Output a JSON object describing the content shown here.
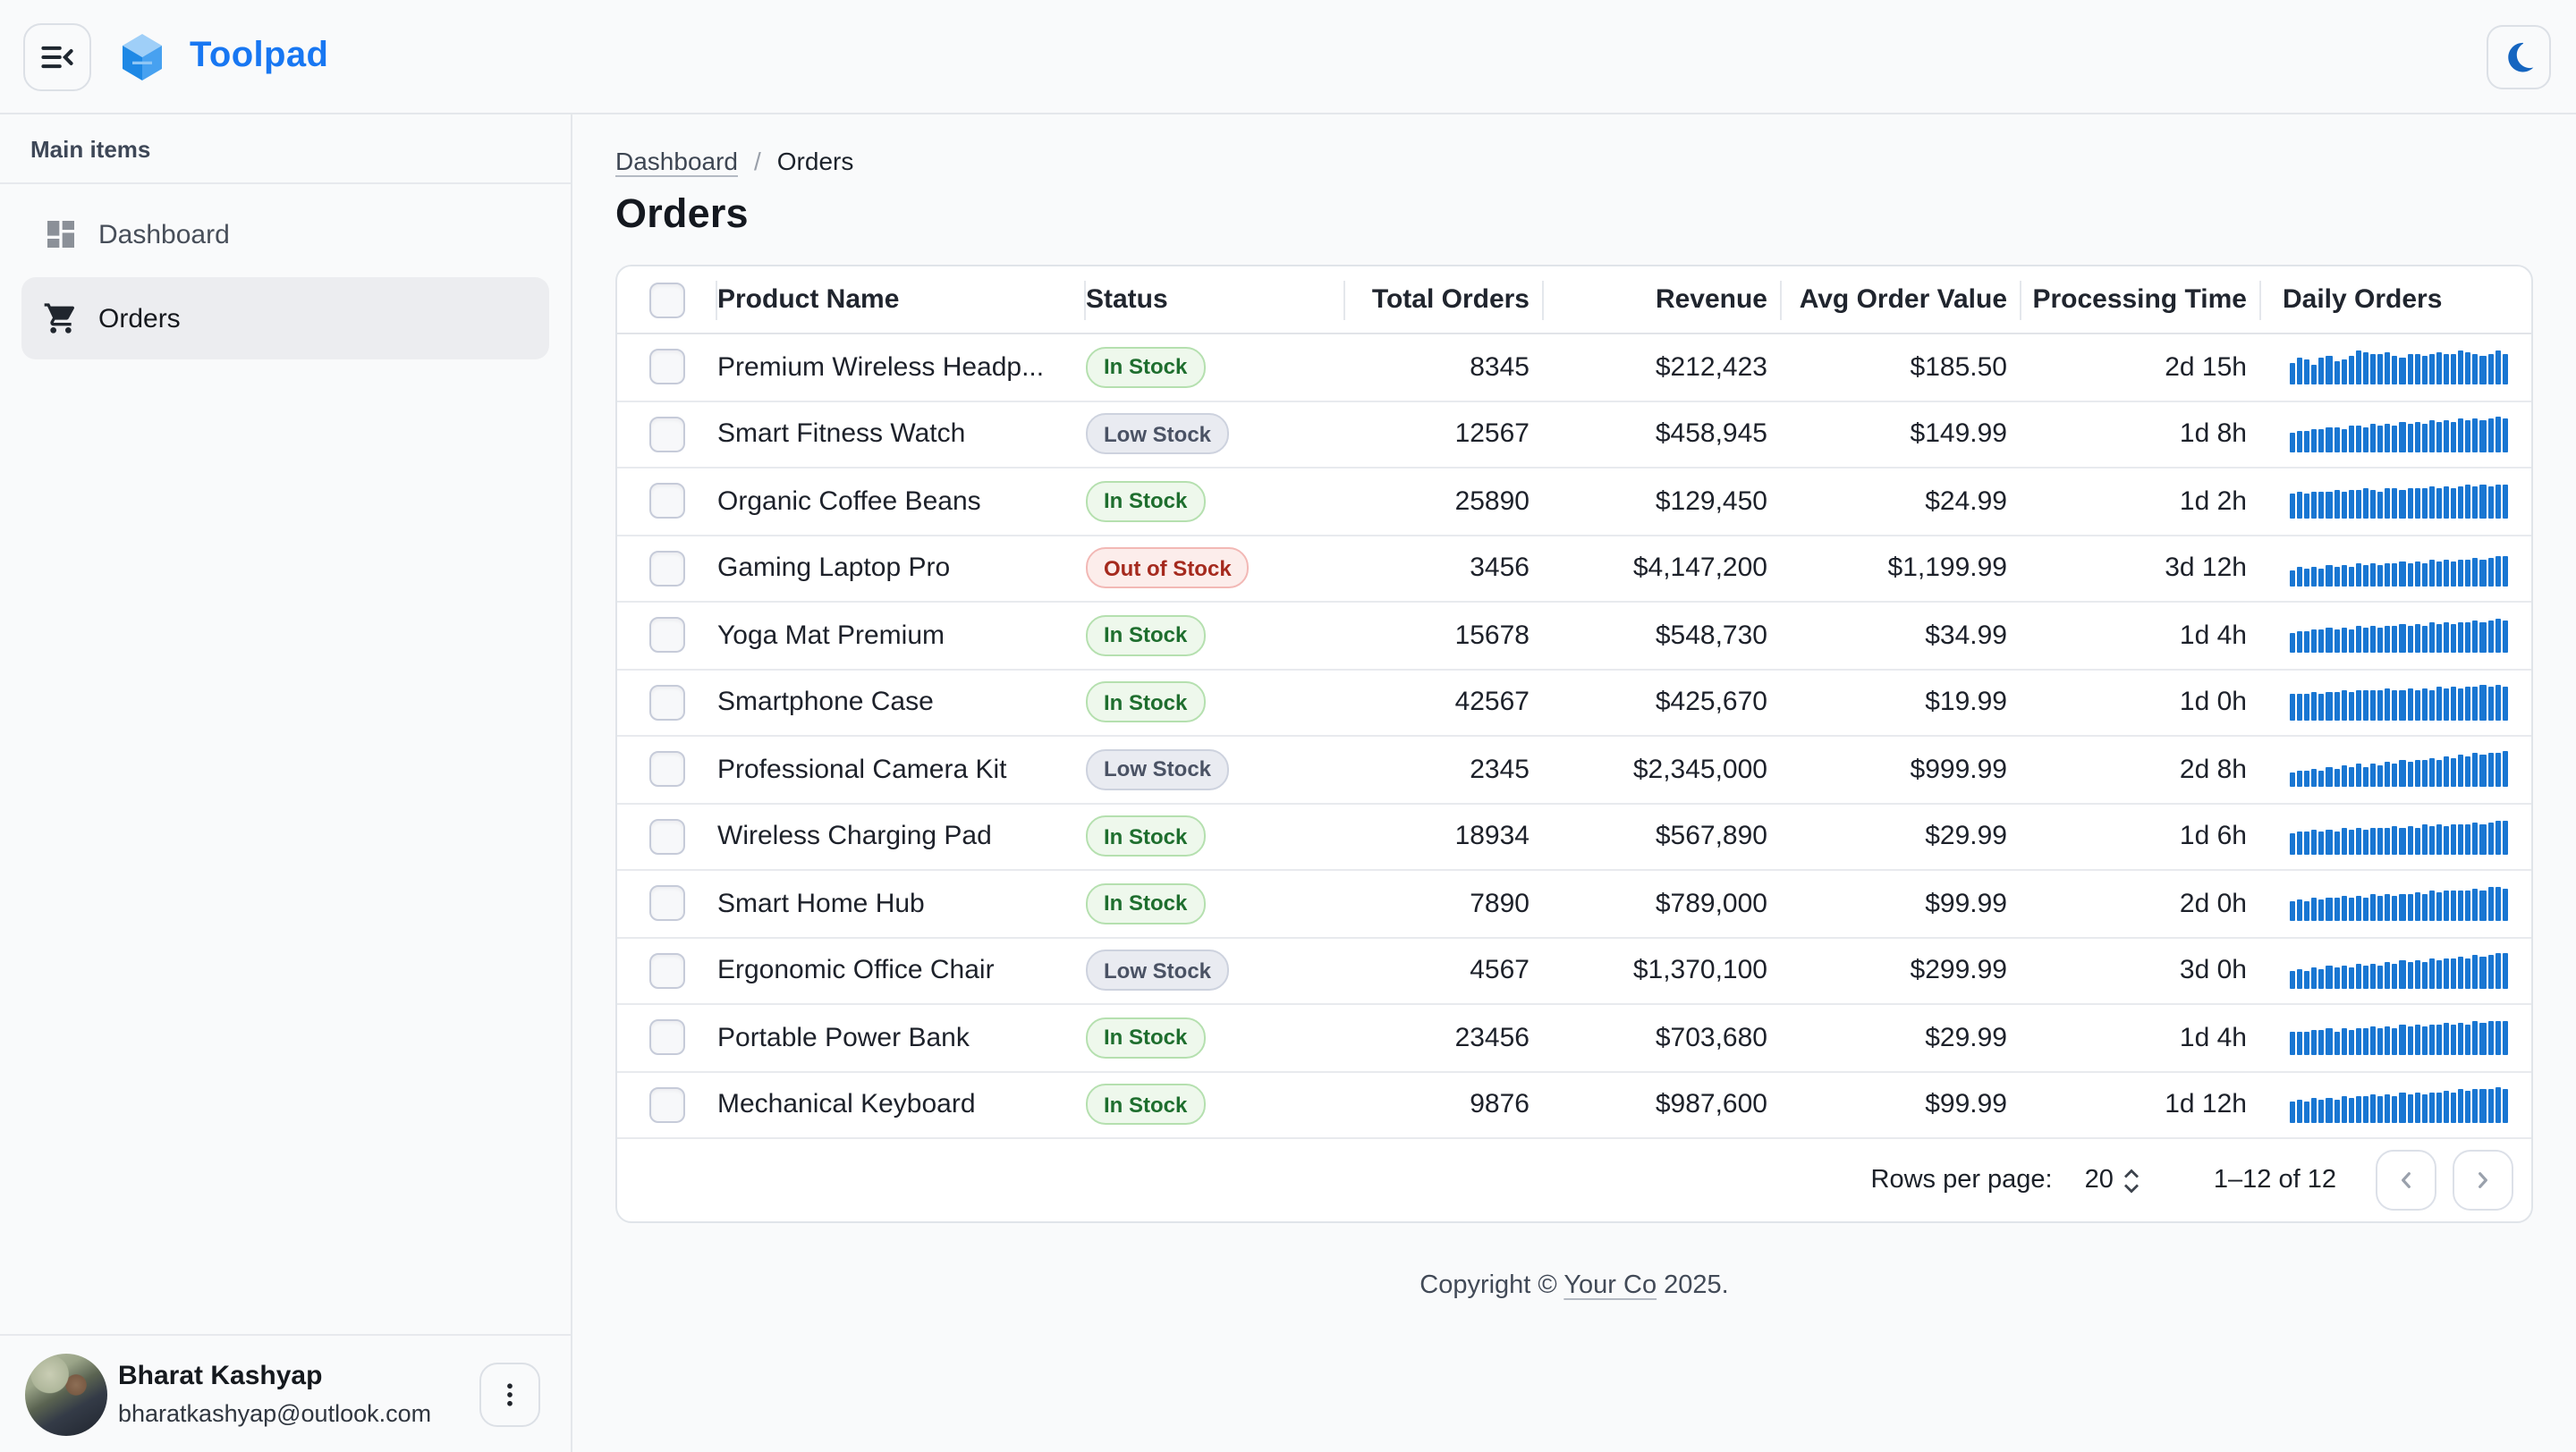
{
  "app": {
    "title": "Toolpad"
  },
  "theme": {
    "brand_blue": "#1877F2",
    "moon_blue": "#1565C0",
    "spark_blue": "#1976D2"
  },
  "sidebar": {
    "section_label": "Main items",
    "items": [
      {
        "label": "Dashboard",
        "icon": "dashboard-icon",
        "selected": false
      },
      {
        "label": "Orders",
        "icon": "cart-icon",
        "selected": true
      }
    ],
    "user": {
      "name": "Bharat Kashyap",
      "email": "bharatkashyap@outlook.com"
    }
  },
  "breadcrumb": {
    "parent": "Dashboard",
    "separator": "/",
    "current": "Orders"
  },
  "page": {
    "title": "Orders"
  },
  "table": {
    "columns": [
      "Product Name",
      "Status",
      "Total Orders",
      "Revenue",
      "Avg Order Value",
      "Processing Time",
      "Daily Orders"
    ],
    "rows": [
      {
        "product": "Premium Wireless Headp...",
        "status": {
          "label": "In Stock",
          "type": "in_stock"
        },
        "total_orders": "8345",
        "revenue": "$212,423",
        "avg_order_value": "$185.50",
        "processing_time": "2d 15h",
        "daily_orders": [
          62,
          75,
          70,
          58,
          78,
          82,
          65,
          72,
          80,
          95,
          92,
          88,
          85,
          90,
          82,
          78,
          84,
          88,
          80,
          86,
          92,
          85,
          88,
          94,
          90,
          84,
          82,
          88,
          95,
          85
        ]
      },
      {
        "product": "Smart Fitness Watch",
        "status": {
          "label": "Low Stock",
          "type": "low_stock"
        },
        "total_orders": "12567",
        "revenue": "$458,945",
        "avg_order_value": "$149.99",
        "processing_time": "1d 8h",
        "daily_orders": [
          55,
          60,
          58,
          65,
          62,
          68,
          70,
          66,
          72,
          75,
          70,
          78,
          74,
          80,
          76,
          82,
          78,
          85,
          80,
          88,
          84,
          90,
          86,
          92,
          88,
          95,
          90,
          96,
          100,
          94
        ]
      },
      {
        "product": "Organic Coffee Beans",
        "status": {
          "label": "In Stock",
          "type": "in_stock"
        },
        "total_orders": "25890",
        "revenue": "$129,450",
        "avg_order_value": "$24.99",
        "processing_time": "1d 2h",
        "daily_orders": [
          70,
          74,
          72,
          76,
          78,
          74,
          80,
          78,
          82,
          80,
          84,
          82,
          78,
          84,
          86,
          82,
          88,
          84,
          86,
          90,
          86,
          92,
          88,
          90,
          94,
          90,
          96,
          92,
          98,
          95
        ]
      },
      {
        "product": "Gaming Laptop Pro",
        "status": {
          "label": "Out of Stock",
          "type": "out_of_stock"
        },
        "total_orders": "3456",
        "revenue": "$4,147,200",
        "avg_order_value": "$1,199.99",
        "processing_time": "3d 12h",
        "daily_orders": [
          45,
          52,
          48,
          55,
          50,
          58,
          54,
          60,
          56,
          62,
          58,
          64,
          60,
          66,
          62,
          68,
          64,
          70,
          66,
          72,
          68,
          74,
          70,
          76,
          72,
          78,
          74,
          80,
          82,
          85
        ]
      },
      {
        "product": "Yoga Mat Premium",
        "status": {
          "label": "In Stock",
          "type": "in_stock"
        },
        "total_orders": "15678",
        "revenue": "$548,730",
        "avg_order_value": "$34.99",
        "processing_time": "1d 4h",
        "daily_orders": [
          58,
          62,
          60,
          66,
          64,
          70,
          68,
          72,
          66,
          74,
          70,
          76,
          72,
          78,
          74,
          80,
          76,
          82,
          78,
          84,
          80,
          86,
          82,
          88,
          84,
          90,
          86,
          92,
          94,
          90
        ]
      },
      {
        "product": "Smartphone Case",
        "status": {
          "label": "In Stock",
          "type": "in_stock"
        },
        "total_orders": "42567",
        "revenue": "$425,670",
        "avg_order_value": "$19.99",
        "processing_time": "1d 0h",
        "daily_orders": [
          72,
          76,
          74,
          78,
          76,
          80,
          78,
          82,
          80,
          84,
          82,
          86,
          84,
          88,
          82,
          86,
          88,
          84,
          90,
          86,
          92,
          88,
          94,
          90,
          96,
          92,
          98,
          94,
          100,
          96
        ]
      },
      {
        "product": "Professional Camera Kit",
        "status": {
          "label": "Low Stock",
          "type": "low_stock"
        },
        "total_orders": "2345",
        "revenue": "$2,345,000",
        "avg_order_value": "$999.99",
        "processing_time": "2d 8h",
        "daily_orders": [
          40,
          46,
          44,
          52,
          48,
          56,
          52,
          60,
          56,
          64,
          58,
          66,
          62,
          70,
          66,
          74,
          70,
          78,
          74,
          82,
          78,
          86,
          82,
          90,
          86,
          94,
          90,
          98,
          95,
          100
        ]
      },
      {
        "product": "Wireless Charging Pad",
        "status": {
          "label": "In Stock",
          "type": "in_stock"
        },
        "total_orders": "18934",
        "revenue": "$567,890",
        "avg_order_value": "$29.99",
        "processing_time": "1d 6h",
        "daily_orders": [
          60,
          64,
          62,
          68,
          66,
          70,
          64,
          72,
          68,
          74,
          70,
          76,
          72,
          74,
          78,
          72,
          80,
          74,
          82,
          78,
          84,
          80,
          82,
          86,
          82,
          88,
          84,
          90,
          92,
          95
        ]
      },
      {
        "product": "Smart Home Hub",
        "status": {
          "label": "In Stock",
          "type": "in_stock"
        },
        "total_orders": "7890",
        "revenue": "$789,000",
        "avg_order_value": "$99.99",
        "processing_time": "2d 0h",
        "daily_orders": [
          56,
          60,
          58,
          64,
          62,
          66,
          64,
          70,
          66,
          72,
          68,
          74,
          70,
          76,
          72,
          78,
          76,
          80,
          78,
          84,
          80,
          86,
          84,
          88,
          86,
          92,
          88,
          94,
          96,
          92
        ]
      },
      {
        "product": "Ergonomic Office Chair",
        "status": {
          "label": "Low Stock",
          "type": "low_stock"
        },
        "total_orders": "4567",
        "revenue": "$1,370,100",
        "avg_order_value": "$299.99",
        "processing_time": "3d 0h",
        "daily_orders": [
          48,
          54,
          50,
          58,
          54,
          62,
          58,
          64,
          60,
          68,
          62,
          70,
          66,
          74,
          68,
          78,
          72,
          80,
          76,
          84,
          78,
          86,
          82,
          90,
          84,
          94,
          88,
          96,
          100,
          98
        ]
      },
      {
        "product": "Portable Power Bank",
        "status": {
          "label": "In Stock",
          "type": "in_stock"
        },
        "total_orders": "23456",
        "revenue": "$703,680",
        "avg_order_value": "$29.99",
        "processing_time": "1d 4h",
        "daily_orders": [
          64,
          68,
          66,
          72,
          70,
          74,
          68,
          76,
          72,
          78,
          74,
          80,
          76,
          82,
          78,
          84,
          80,
          86,
          82,
          88,
          84,
          90,
          86,
          92,
          88,
          94,
          90,
          96,
          98,
          94
        ]
      },
      {
        "product": "Mechanical Keyboard",
        "status": {
          "label": "In Stock",
          "type": "in_stock"
        },
        "total_orders": "9876",
        "revenue": "$987,600",
        "avg_order_value": "$99.99",
        "processing_time": "1d 12h",
        "daily_orders": [
          58,
          64,
          60,
          68,
          64,
          70,
          66,
          74,
          68,
          76,
          72,
          78,
          74,
          80,
          76,
          82,
          78,
          84,
          80,
          86,
          84,
          90,
          86,
          92,
          88,
          94,
          92,
          96,
          100,
          96
        ]
      }
    ]
  },
  "pagination": {
    "rows_per_page_label": "Rows per page:",
    "rows_per_page_value": "20",
    "range_label": "1–12 of 12"
  },
  "footer": {
    "copyright_prefix": "Copyright © ",
    "company": "Your Co",
    "copyright_suffix": " 2025."
  }
}
